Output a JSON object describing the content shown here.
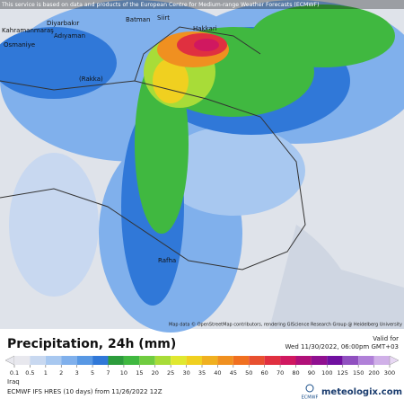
{
  "header": {
    "notice": "This service is based on data and products of the European Centre for Medium-range Weather Forecasts (ECMWF)"
  },
  "map": {
    "cities": [
      "Diyarbakır",
      "Batman",
      "Siirt",
      "Hakkari",
      "Kahramanmaraş",
      "Adıyaman",
      "Osmaniye",
      "(Rakka)",
      "Rafha"
    ],
    "attribution": "Map data © OpenStreetMap contributors, rendering GIScience Research Group @ Heidelberg University"
  },
  "legend": {
    "title": "Precipitation, 24h (mm)",
    "valid_label": "Valid for",
    "valid_time": "Wed 11/30/2022, 06:00pm GMT+03",
    "scale": [
      {
        "value": 0.1,
        "color": "#e8e8ee"
      },
      {
        "value": 0.5,
        "color": "#c8d8f0"
      },
      {
        "value": 1,
        "color": "#a8c8f0"
      },
      {
        "value": 2,
        "color": "#80b0ec"
      },
      {
        "value": 3,
        "color": "#5898e4"
      },
      {
        "value": 5,
        "color": "#3078d8"
      },
      {
        "value": 7,
        "color": "#2c9c3c"
      },
      {
        "value": 10,
        "color": "#40b840"
      },
      {
        "value": 15,
        "color": "#70cc40"
      },
      {
        "value": 20,
        "color": "#a8dc38"
      },
      {
        "value": 25,
        "color": "#e0e830"
      },
      {
        "value": 30,
        "color": "#f0d020"
      },
      {
        "value": 35,
        "color": "#f0b020"
      },
      {
        "value": 40,
        "color": "#f09020"
      },
      {
        "value": 45,
        "color": "#f07020"
      },
      {
        "value": 50,
        "color": "#e85030"
      },
      {
        "value": 60,
        "color": "#e03040"
      },
      {
        "value": 70,
        "color": "#d01860"
      },
      {
        "value": 80,
        "color": "#b01078"
      },
      {
        "value": 90,
        "color": "#901090"
      },
      {
        "value": 100,
        "color": "#7010a0"
      },
      {
        "value": 125,
        "color": "#9050c0"
      },
      {
        "value": 150,
        "color": "#b080d8"
      },
      {
        "value": 200,
        "color": "#d0b0e8"
      },
      {
        "value": 300,
        "color": "#e8d8f4"
      }
    ]
  },
  "footer": {
    "region": "Iraq",
    "model": "ECMWF IFS HRES (10 days) from 11/26/2022 12Z",
    "ecmwf": "ECMWF",
    "brand": "meteologix.com"
  }
}
